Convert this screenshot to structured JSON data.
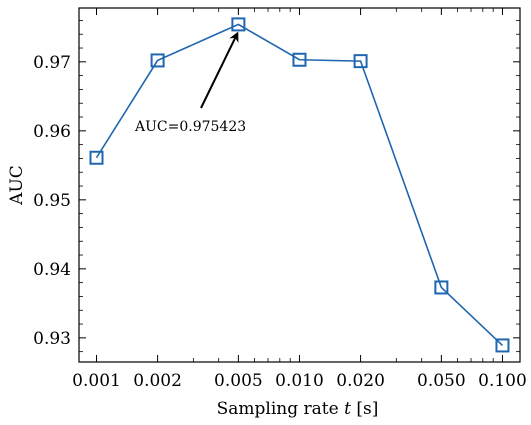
{
  "chart_data": {
    "type": "line",
    "title": "",
    "xlabel_prefix": "Sampling rate ",
    "xlabel_var": "t",
    "xlabel_suffix": " [s]",
    "ylabel": "AUC",
    "x_scale": "log",
    "categories": [
      "0.001",
      "0.002",
      "0.005",
      "0.010",
      "0.020",
      "0.050",
      "0.100"
    ],
    "x": [
      0.001,
      0.002,
      0.005,
      0.01,
      0.02,
      0.05,
      0.1
    ],
    "yticks": [
      "0.93",
      "0.94",
      "0.95",
      "0.96",
      "0.97"
    ],
    "ytick_values": [
      0.93,
      0.94,
      0.95,
      0.96,
      0.97
    ],
    "ylim": [
      0.9265,
      0.9778
    ],
    "xlim": [
      0.00082,
      0.122
    ],
    "grid": false,
    "series": [
      {
        "values": [
          0.9561,
          0.9702,
          0.975423,
          0.9703,
          0.9701,
          0.9373,
          0.9289
        ],
        "color": "#1f66b0",
        "marker": "square-open"
      }
    ],
    "annotation": {
      "text": "AUC=0.975423",
      "target_x": 0.005,
      "target_y": 0.975423
    }
  }
}
